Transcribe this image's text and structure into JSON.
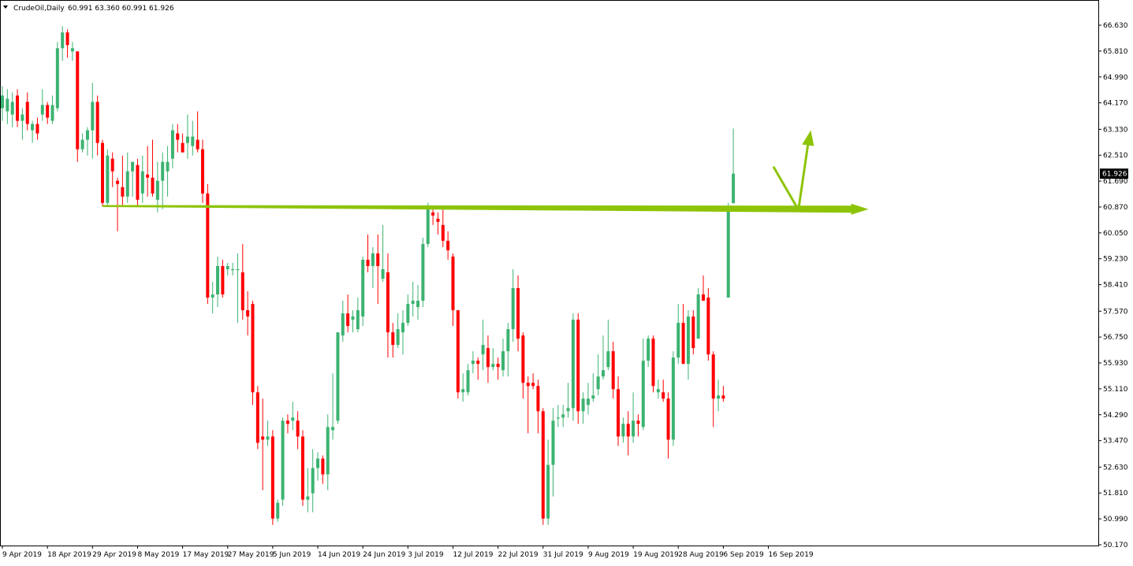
{
  "header": {
    "symbol_timeframe": "CrudeOil,Daily",
    "ohlc": "60.991 63.360 60.991 61.926",
    "menu_icon": "triangle-down-icon"
  },
  "price_label": "61.926",
  "colors": {
    "bull": "#3cb371",
    "bear": "#ff0000",
    "annotation": "#8dc407",
    "price_tag_bg": "#000000",
    "price_tag_text": "#ffffff"
  },
  "chart_data": {
    "type": "candlestick",
    "instrument": "CrudeOil",
    "timeframe": "Daily",
    "ylim": [
      50.0,
      67.0
    ],
    "y_ticks": [
      {
        "value": 66.63,
        "label": "66.630"
      },
      {
        "value": 65.81,
        "label": "65.810"
      },
      {
        "value": 64.99,
        "label": "64.990"
      },
      {
        "value": 64.17,
        "label": "64.170"
      },
      {
        "value": 63.33,
        "label": "63.330"
      },
      {
        "value": 62.51,
        "label": "62.510"
      },
      {
        "value": 61.69,
        "label": "61.690"
      },
      {
        "value": 60.87,
        "label": "60.870"
      },
      {
        "value": 60.05,
        "label": "60.050"
      },
      {
        "value": 59.23,
        "label": "59.230"
      },
      {
        "value": 58.41,
        "label": "58.410"
      },
      {
        "value": 57.57,
        "label": "57.570"
      },
      {
        "value": 56.75,
        "label": "56.750"
      },
      {
        "value": 55.93,
        "label": "55.930"
      },
      {
        "value": 55.11,
        "label": "55.110"
      },
      {
        "value": 54.29,
        "label": "54.290"
      },
      {
        "value": 53.47,
        "label": "53.470"
      },
      {
        "value": 52.63,
        "label": "52.630"
      },
      {
        "value": 51.81,
        "label": "51.810"
      },
      {
        "value": 50.99,
        "label": "50.990"
      },
      {
        "value": 50.17,
        "label": "50.170"
      }
    ],
    "x_ticks": [
      {
        "index": 0,
        "label": "9 Apr 2019"
      },
      {
        "index": 9,
        "label": "18 Apr 2019"
      },
      {
        "index": 18,
        "label": "29 Apr 2019"
      },
      {
        "index": 27,
        "label": "8 May 2019"
      },
      {
        "index": 36,
        "label": "17 May 2019"
      },
      {
        "index": 45,
        "label": "27 May 2019"
      },
      {
        "index": 54,
        "label": "5 Jun 2019"
      },
      {
        "index": 63,
        "label": "14 Jun 2019"
      },
      {
        "index": 72,
        "label": "24 Jun 2019"
      },
      {
        "index": 81,
        "label": "3 Jul 2019"
      },
      {
        "index": 90,
        "label": "12 Jul 2019"
      },
      {
        "index": 99,
        "label": "22 Jul 2019"
      },
      {
        "index": 108,
        "label": "31 Jul 2019"
      },
      {
        "index": 117,
        "label": "9 Aug 2019"
      },
      {
        "index": 126,
        "label": "19 Aug 2019"
      },
      {
        "index": 135,
        "label": "28 Aug 2019"
      },
      {
        "index": 144,
        "label": "6 Sep 2019"
      },
      {
        "index": 153,
        "label": "16 Sep 2019"
      }
    ],
    "candles": [
      {
        "o": 64.0,
        "h": 64.7,
        "l": 63.6,
        "c": 64.4
      },
      {
        "o": 63.9,
        "h": 64.6,
        "l": 63.5,
        "c": 64.3
      },
      {
        "o": 63.8,
        "h": 64.5,
        "l": 63.4,
        "c": 64.2
      },
      {
        "o": 64.4,
        "h": 64.6,
        "l": 63.4,
        "c": 63.6
      },
      {
        "o": 63.6,
        "h": 64.0,
        "l": 63.0,
        "c": 63.8
      },
      {
        "o": 64.2,
        "h": 64.5,
        "l": 63.3,
        "c": 63.5
      },
      {
        "o": 63.3,
        "h": 63.6,
        "l": 62.9,
        "c": 63.5
      },
      {
        "o": 63.5,
        "h": 63.7,
        "l": 63.0,
        "c": 63.2
      },
      {
        "o": 63.8,
        "h": 64.6,
        "l": 63.6,
        "c": 64.1
      },
      {
        "o": 64.1,
        "h": 64.2,
        "l": 63.5,
        "c": 63.7
      },
      {
        "o": 63.6,
        "h": 64.4,
        "l": 63.5,
        "c": 64.1
      },
      {
        "o": 64.0,
        "h": 66.1,
        "l": 63.9,
        "c": 65.9
      },
      {
        "o": 65.9,
        "h": 66.6,
        "l": 65.5,
        "c": 66.4
      },
      {
        "o": 66.4,
        "h": 66.5,
        "l": 65.6,
        "c": 66.0
      },
      {
        "o": 65.8,
        "h": 66.1,
        "l": 65.5,
        "c": 65.9
      },
      {
        "o": 65.8,
        "h": 65.8,
        "l": 62.3,
        "c": 62.7
      },
      {
        "o": 62.7,
        "h": 63.2,
        "l": 62.6,
        "c": 63.0
      },
      {
        "o": 63.0,
        "h": 63.4,
        "l": 62.5,
        "c": 63.3
      },
      {
        "o": 63.3,
        "h": 64.8,
        "l": 62.4,
        "c": 64.2
      },
      {
        "o": 64.2,
        "h": 64.4,
        "l": 62.5,
        "c": 62.9
      },
      {
        "o": 62.9,
        "h": 63.0,
        "l": 60.9,
        "c": 61.0
      },
      {
        "o": 61.0,
        "h": 62.7,
        "l": 60.9,
        "c": 62.5
      },
      {
        "o": 62.4,
        "h": 62.6,
        "l": 61.5,
        "c": 62.0
      },
      {
        "o": 61.7,
        "h": 61.8,
        "l": 60.1,
        "c": 61.6
      },
      {
        "o": 61.5,
        "h": 62.5,
        "l": 60.9,
        "c": 61.2
      },
      {
        "o": 61.2,
        "h": 62.6,
        "l": 61.0,
        "c": 62.0
      },
      {
        "o": 62.0,
        "h": 62.3,
        "l": 61.2,
        "c": 62.3
      },
      {
        "o": 62.2,
        "h": 62.4,
        "l": 60.9,
        "c": 61.1
      },
      {
        "o": 61.3,
        "h": 62.5,
        "l": 61.0,
        "c": 62.0
      },
      {
        "o": 61.9,
        "h": 62.8,
        "l": 61.2,
        "c": 61.8
      },
      {
        "o": 61.8,
        "h": 63.0,
        "l": 61.2,
        "c": 61.3
      },
      {
        "o": 61.1,
        "h": 62.3,
        "l": 60.7,
        "c": 61.7
      },
      {
        "o": 61.7,
        "h": 62.6,
        "l": 60.8,
        "c": 62.3
      },
      {
        "o": 62.0,
        "h": 62.8,
        "l": 61.2,
        "c": 62.3
      },
      {
        "o": 62.4,
        "h": 63.5,
        "l": 62.1,
        "c": 63.3
      },
      {
        "o": 63.2,
        "h": 63.5,
        "l": 62.6,
        "c": 63.0
      },
      {
        "o": 62.9,
        "h": 63.2,
        "l": 62.6,
        "c": 62.6
      },
      {
        "o": 62.9,
        "h": 63.8,
        "l": 62.4,
        "c": 63.1
      },
      {
        "o": 62.8,
        "h": 63.6,
        "l": 62.5,
        "c": 63.1
      },
      {
        "o": 63.0,
        "h": 63.9,
        "l": 62.6,
        "c": 62.7
      },
      {
        "o": 62.7,
        "h": 63.0,
        "l": 61.0,
        "c": 61.3
      },
      {
        "o": 61.3,
        "h": 61.6,
        "l": 57.8,
        "c": 58.0
      },
      {
        "o": 58.0,
        "h": 58.5,
        "l": 57.5,
        "c": 58.1
      },
      {
        "o": 58.1,
        "h": 59.3,
        "l": 57.7,
        "c": 59.0
      },
      {
        "o": 59.0,
        "h": 59.2,
        "l": 58.0,
        "c": 58.1
      },
      {
        "o": 58.9,
        "h": 59.1,
        "l": 58.7,
        "c": 59.0
      },
      {
        "o": 58.9,
        "h": 59.1,
        "l": 58.7,
        "c": 58.9
      },
      {
        "o": 58.9,
        "h": 59.4,
        "l": 57.2,
        "c": 58.9
      },
      {
        "o": 58.8,
        "h": 59.7,
        "l": 57.3,
        "c": 57.6
      },
      {
        "o": 57.6,
        "h": 58.2,
        "l": 56.8,
        "c": 57.4
      },
      {
        "o": 57.8,
        "h": 57.9,
        "l": 54.6,
        "c": 55.0
      },
      {
        "o": 55.0,
        "h": 55.2,
        "l": 53.2,
        "c": 53.4
      },
      {
        "o": 53.6,
        "h": 54.8,
        "l": 51.9,
        "c": 53.5
      },
      {
        "o": 53.5,
        "h": 54.1,
        "l": 53.3,
        "c": 53.6
      },
      {
        "o": 53.6,
        "h": 53.8,
        "l": 50.8,
        "c": 51.0
      },
      {
        "o": 51.0,
        "h": 51.6,
        "l": 50.9,
        "c": 51.5
      },
      {
        "o": 51.6,
        "h": 54.2,
        "l": 51.4,
        "c": 54.1
      },
      {
        "o": 54.1,
        "h": 54.3,
        "l": 53.7,
        "c": 54.0
      },
      {
        "o": 54.1,
        "h": 54.7,
        "l": 53.8,
        "c": 54.2
      },
      {
        "o": 54.1,
        "h": 54.4,
        "l": 53.2,
        "c": 53.6
      },
      {
        "o": 53.6,
        "h": 53.8,
        "l": 51.4,
        "c": 51.6
      },
      {
        "o": 51.6,
        "h": 52.6,
        "l": 51.2,
        "c": 51.7
      },
      {
        "o": 51.8,
        "h": 53.2,
        "l": 51.2,
        "c": 52.6
      },
      {
        "o": 52.6,
        "h": 53.1,
        "l": 52.2,
        "c": 52.9
      },
      {
        "o": 52.9,
        "h": 53.0,
        "l": 52.1,
        "c": 52.4
      },
      {
        "o": 52.4,
        "h": 54.3,
        "l": 51.9,
        "c": 53.9
      },
      {
        "o": 53.8,
        "h": 55.6,
        "l": 53.5,
        "c": 53.9
      },
      {
        "o": 54.1,
        "h": 56.9,
        "l": 54.0,
        "c": 56.9
      },
      {
        "o": 56.8,
        "h": 57.9,
        "l": 56.6,
        "c": 57.5
      },
      {
        "o": 57.5,
        "h": 58.1,
        "l": 56.9,
        "c": 57.1
      },
      {
        "o": 57.3,
        "h": 57.6,
        "l": 56.9,
        "c": 57.4
      },
      {
        "o": 57.0,
        "h": 58.0,
        "l": 56.9,
        "c": 57.6
      },
      {
        "o": 57.4,
        "h": 59.3,
        "l": 57.1,
        "c": 59.2
      },
      {
        "o": 59.2,
        "h": 60.0,
        "l": 58.8,
        "c": 59.0
      },
      {
        "o": 59.0,
        "h": 59.6,
        "l": 58.3,
        "c": 59.4
      },
      {
        "o": 59.4,
        "h": 60.0,
        "l": 57.8,
        "c": 59.0
      },
      {
        "o": 58.6,
        "h": 60.3,
        "l": 58.5,
        "c": 58.9
      },
      {
        "o": 58.8,
        "h": 59.4,
        "l": 56.1,
        "c": 56.9
      },
      {
        "o": 56.9,
        "h": 57.2,
        "l": 56.1,
        "c": 56.5
      },
      {
        "o": 56.5,
        "h": 57.5,
        "l": 56.4,
        "c": 57.0
      },
      {
        "o": 56.9,
        "h": 57.6,
        "l": 56.2,
        "c": 57.2
      },
      {
        "o": 57.2,
        "h": 58.1,
        "l": 57.1,
        "c": 57.8
      },
      {
        "o": 57.8,
        "h": 58.5,
        "l": 57.4,
        "c": 57.9
      },
      {
        "o": 57.7,
        "h": 58.4,
        "l": 57.3,
        "c": 57.9
      },
      {
        "o": 57.9,
        "h": 59.9,
        "l": 57.7,
        "c": 59.7
      },
      {
        "o": 59.7,
        "h": 61.0,
        "l": 59.6,
        "c": 60.8
      },
      {
        "o": 60.7,
        "h": 60.9,
        "l": 60.3,
        "c": 60.6
      },
      {
        "o": 60.5,
        "h": 60.7,
        "l": 60.0,
        "c": 60.4
      },
      {
        "o": 60.3,
        "h": 60.8,
        "l": 59.6,
        "c": 59.8
      },
      {
        "o": 59.8,
        "h": 60.1,
        "l": 59.2,
        "c": 59.5
      },
      {
        "o": 59.3,
        "h": 59.4,
        "l": 57.1,
        "c": 57.6
      },
      {
        "o": 57.6,
        "h": 57.6,
        "l": 54.8,
        "c": 55.0
      },
      {
        "o": 55.0,
        "h": 55.6,
        "l": 54.7,
        "c": 55.1
      },
      {
        "o": 55.0,
        "h": 55.9,
        "l": 54.9,
        "c": 55.7
      },
      {
        "o": 55.9,
        "h": 56.3,
        "l": 55.6,
        "c": 56.0
      },
      {
        "o": 56.0,
        "h": 56.1,
        "l": 55.4,
        "c": 55.9
      },
      {
        "o": 56.2,
        "h": 57.3,
        "l": 55.7,
        "c": 56.5
      },
      {
        "o": 56.4,
        "h": 56.8,
        "l": 55.3,
        "c": 55.8
      },
      {
        "o": 55.8,
        "h": 56.4,
        "l": 55.7,
        "c": 55.9
      },
      {
        "o": 55.9,
        "h": 56.1,
        "l": 55.4,
        "c": 55.8
      },
      {
        "o": 55.7,
        "h": 56.7,
        "l": 55.5,
        "c": 56.3
      },
      {
        "o": 56.3,
        "h": 57.2,
        "l": 55.5,
        "c": 57.0
      },
      {
        "o": 57.0,
        "h": 58.9,
        "l": 56.6,
        "c": 58.3
      },
      {
        "o": 58.3,
        "h": 58.7,
        "l": 56.3,
        "c": 56.7
      },
      {
        "o": 56.8,
        "h": 56.9,
        "l": 54.8,
        "c": 55.3
      },
      {
        "o": 55.3,
        "h": 55.5,
        "l": 53.7,
        "c": 55.2
      },
      {
        "o": 55.3,
        "h": 55.6,
        "l": 55.1,
        "c": 55.2
      },
      {
        "o": 55.2,
        "h": 55.4,
        "l": 53.7,
        "c": 54.4
      },
      {
        "o": 54.4,
        "h": 54.5,
        "l": 50.8,
        "c": 51.0
      },
      {
        "o": 51.0,
        "h": 53.5,
        "l": 50.8,
        "c": 52.7
      },
      {
        "o": 52.7,
        "h": 54.5,
        "l": 51.7,
        "c": 54.1
      },
      {
        "o": 54.2,
        "h": 54.6,
        "l": 53.9,
        "c": 54.2
      },
      {
        "o": 54.2,
        "h": 54.6,
        "l": 53.9,
        "c": 54.3
      },
      {
        "o": 54.4,
        "h": 55.3,
        "l": 54.2,
        "c": 54.5
      },
      {
        "o": 54.5,
        "h": 57.5,
        "l": 54.1,
        "c": 57.3
      },
      {
        "o": 57.3,
        "h": 57.5,
        "l": 54.0,
        "c": 54.4
      },
      {
        "o": 54.4,
        "h": 55.0,
        "l": 54.0,
        "c": 54.8
      },
      {
        "o": 54.6,
        "h": 55.3,
        "l": 54.3,
        "c": 54.8
      },
      {
        "o": 54.8,
        "h": 55.6,
        "l": 54.7,
        "c": 54.9
      },
      {
        "o": 55.1,
        "h": 56.2,
        "l": 54.9,
        "c": 55.5
      },
      {
        "o": 55.5,
        "h": 56.8,
        "l": 55.4,
        "c": 55.7
      },
      {
        "o": 55.8,
        "h": 57.3,
        "l": 55.7,
        "c": 56.3
      },
      {
        "o": 56.3,
        "h": 56.6,
        "l": 54.8,
        "c": 55.1
      },
      {
        "o": 55.1,
        "h": 55.5,
        "l": 53.3,
        "c": 53.6
      },
      {
        "o": 53.6,
        "h": 54.2,
        "l": 53.4,
        "c": 54.0
      },
      {
        "o": 54.0,
        "h": 54.4,
        "l": 53.0,
        "c": 53.6
      },
      {
        "o": 53.6,
        "h": 55.0,
        "l": 53.4,
        "c": 54.1
      },
      {
        "o": 54.1,
        "h": 54.3,
        "l": 53.6,
        "c": 54.0
      },
      {
        "o": 53.9,
        "h": 56.7,
        "l": 53.8,
        "c": 56.0
      },
      {
        "o": 56.0,
        "h": 56.8,
        "l": 55.8,
        "c": 56.7
      },
      {
        "o": 56.7,
        "h": 56.8,
        "l": 55.0,
        "c": 55.2
      },
      {
        "o": 55.0,
        "h": 55.4,
        "l": 54.8,
        "c": 55.1
      },
      {
        "o": 55.0,
        "h": 55.4,
        "l": 54.7,
        "c": 54.8
      },
      {
        "o": 54.8,
        "h": 55.0,
        "l": 52.9,
        "c": 53.5
      },
      {
        "o": 53.5,
        "h": 56.3,
        "l": 53.3,
        "c": 56.1
      },
      {
        "o": 56.1,
        "h": 57.8,
        "l": 55.9,
        "c": 57.2
      },
      {
        "o": 57.2,
        "h": 57.8,
        "l": 55.9,
        "c": 55.9
      },
      {
        "o": 55.9,
        "h": 57.6,
        "l": 55.4,
        "c": 57.4
      },
      {
        "o": 57.4,
        "h": 57.6,
        "l": 56.2,
        "c": 56.4
      },
      {
        "o": 56.7,
        "h": 58.3,
        "l": 56.7,
        "c": 58.1
      },
      {
        "o": 58.1,
        "h": 58.7,
        "l": 57.9,
        "c": 57.9
      },
      {
        "o": 58.0,
        "h": 58.3,
        "l": 56.0,
        "c": 56.2
      },
      {
        "o": 56.2,
        "h": 56.3,
        "l": 53.9,
        "c": 54.8
      },
      {
        "o": 54.8,
        "h": 55.4,
        "l": 54.4,
        "c": 54.9
      },
      {
        "o": 54.9,
        "h": 55.2,
        "l": 54.7,
        "c": 54.8
      },
      {
        "o": 58.0,
        "h": 61.0,
        "l": 58.0,
        "c": 60.9
      },
      {
        "o": 60.991,
        "h": 63.36,
        "l": 60.991,
        "c": 61.926
      }
    ],
    "current_price": 61.926,
    "annotations": {
      "support_line": {
        "start_index": 20,
        "start_price": 60.9,
        "end_index": 173,
        "end_price": 60.8
      },
      "projection_path": [
        {
          "index": 154,
          "price": 62.15
        },
        {
          "index": 159,
          "price": 60.78
        },
        {
          "index": 161,
          "price": 63.3
        }
      ]
    }
  }
}
